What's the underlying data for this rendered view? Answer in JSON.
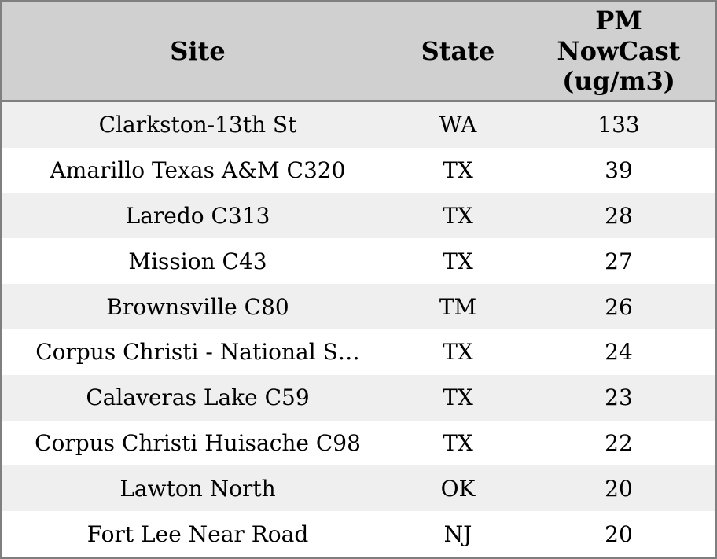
{
  "colors": {
    "header_bg": "#d0d0d0",
    "row_stripe_bg": "#efefef",
    "row_bg": "#ffffff",
    "border": "#7f7f7f",
    "text": "#000000"
  },
  "table": {
    "headers": {
      "site": "Site",
      "state": "State",
      "value": "PM\nNowCast\n(ug/m3)"
    },
    "rows": [
      {
        "site": "Clarkston-13th St",
        "state": "WA",
        "value": 133
      },
      {
        "site": "Amarillo Texas A&M C320",
        "state": "TX",
        "value": 39
      },
      {
        "site": "Laredo C313",
        "state": "TX",
        "value": 28
      },
      {
        "site": "Mission C43",
        "state": "TX",
        "value": 27
      },
      {
        "site": "Brownsville C80",
        "state": "TM",
        "value": 26
      },
      {
        "site": "Corpus Christi - National S…",
        "state": "TX",
        "value": 24
      },
      {
        "site": "Calaveras Lake C59",
        "state": "TX",
        "value": 23
      },
      {
        "site": "Corpus Christi Huisache C98",
        "state": "TX",
        "value": 22
      },
      {
        "site": "Lawton North",
        "state": "OK",
        "value": 20
      },
      {
        "site": "Fort Lee Near Road",
        "state": "NJ",
        "value": 20
      }
    ]
  },
  "chart_data": {
    "type": "table",
    "columns": [
      "Site",
      "State",
      "PM NowCast (ug/m3)"
    ],
    "rows": [
      [
        "Clarkston-13th St",
        "WA",
        133
      ],
      [
        "Amarillo Texas A&M C320",
        "TX",
        39
      ],
      [
        "Laredo C313",
        "TX",
        28
      ],
      [
        "Mission C43",
        "TX",
        27
      ],
      [
        "Brownsville C80",
        "TM",
        26
      ],
      [
        "Corpus Christi - National S…",
        "TX",
        24
      ],
      [
        "Calaveras Lake C59",
        "TX",
        23
      ],
      [
        "Corpus Christi Huisache C98",
        "TX",
        22
      ],
      [
        "Lawton North",
        "OK",
        20
      ],
      [
        "Fort Lee Near Road",
        "NJ",
        20
      ]
    ]
  }
}
